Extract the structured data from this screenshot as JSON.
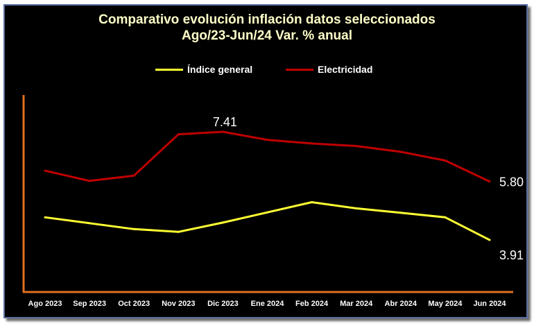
{
  "chart_data": {
    "type": "line",
    "title_line1": "Comparativo evolución inflación datos seleccionados",
    "title_line2": "Ago/23-Jun/24 Var. % anual",
    "categories": [
      "Ago 2023",
      "Sep 2023",
      "Oct 2023",
      "Nov 2023",
      "Dic 2023",
      "Ene 2024",
      "Feb 2024",
      "Mar 2024",
      "Abr 2024",
      "May 2024",
      "Jun 2024"
    ],
    "series": [
      {
        "name": "Índice general",
        "color": "#ffff33",
        "values": [
          4.64,
          4.45,
          4.26,
          4.17,
          4.47,
          4.8,
          5.13,
          4.93,
          4.79,
          4.64,
          3.91
        ]
      },
      {
        "name": "Electricidad",
        "color": "#c00000",
        "values": [
          6.15,
          5.82,
          5.99,
          7.33,
          7.41,
          7.15,
          7.03,
          6.95,
          6.76,
          6.48,
          5.8
        ]
      }
    ],
    "data_labels": [
      {
        "series": 1,
        "index": 4,
        "text": "7.41"
      },
      {
        "series": 1,
        "index": 10,
        "text": "5.80"
      },
      {
        "series": 0,
        "index": 10,
        "text": "3.91"
      }
    ],
    "ylim": [
      2.2,
      8.6
    ],
    "axis_color": "#e07020",
    "grid": false,
    "legend_position": "top"
  }
}
